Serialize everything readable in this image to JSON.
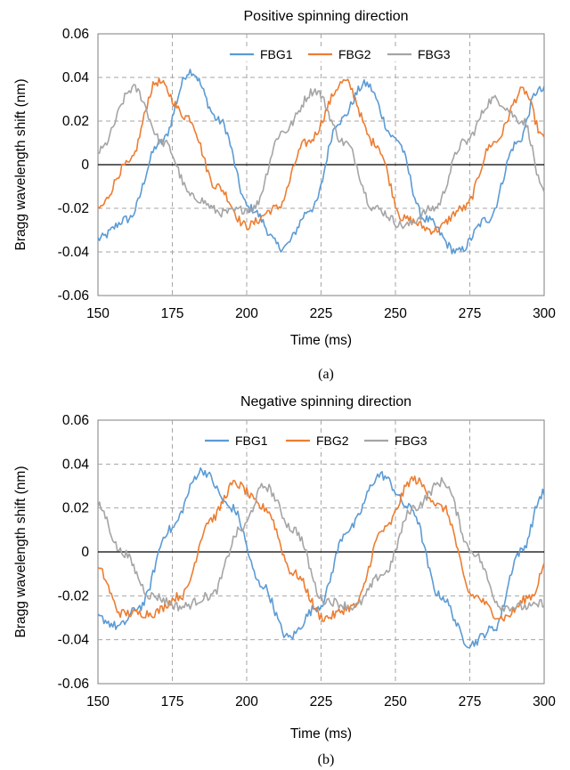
{
  "chart_data": [
    {
      "type": "line",
      "title": "Positive spinning direction",
      "xlabel": "Time (ms)",
      "ylabel": "Bragg wavelength shift (nm)",
      "caption": "(a)",
      "xlim": [
        150,
        300
      ],
      "ylim": [
        -0.06,
        0.06
      ],
      "xticks": [
        "150",
        "175",
        "200",
        "225",
        "250",
        "275",
        "300"
      ],
      "yticks": [
        "0.06",
        "0.04",
        "0.02",
        "0",
        "-0.02",
        "-0.04",
        "-0.06"
      ],
      "grid": "dashed at x = 175, 200, 225, 250, 275 and y = ±0.02, ±0.04; solid line at y = 0",
      "legend_position": "top",
      "series": [
        {
          "name": "FBG1",
          "color": "#5B9BD5",
          "x": [
            150,
            160,
            171,
            181,
            191,
            201,
            212,
            222,
            231,
            240,
            250,
            260,
            271,
            281,
            291,
            298,
            300
          ],
          "y": [
            -0.034,
            -0.025,
            0.01,
            0.043,
            0.02,
            -0.02,
            -0.038,
            -0.02,
            0.02,
            0.037,
            0.012,
            -0.025,
            -0.04,
            -0.025,
            0.01,
            0.034,
            0.034
          ]
        },
        {
          "name": "FBG2",
          "color": "#ED7D31",
          "x": [
            150,
            160,
            170,
            180,
            190,
            200,
            210,
            220,
            233,
            243,
            253,
            263,
            273,
            283,
            293,
            300
          ],
          "y": [
            -0.02,
            0.0,
            0.038,
            0.022,
            -0.01,
            -0.028,
            -0.02,
            0.01,
            0.038,
            0.01,
            -0.025,
            -0.03,
            -0.02,
            0.01,
            0.034,
            0.012
          ]
        },
        {
          "name": "FBG3",
          "color": "#A5A5A5",
          "x": [
            150,
            162,
            172,
            182,
            192,
            202,
            212,
            223,
            233,
            243,
            253,
            263,
            273,
            283,
            293,
            300
          ],
          "y": [
            0.006,
            0.035,
            0.01,
            -0.015,
            -0.022,
            -0.02,
            0.015,
            0.034,
            0.01,
            -0.02,
            -0.028,
            -0.02,
            0.01,
            0.03,
            0.02,
            -0.013
          ]
        }
      ]
    },
    {
      "type": "line",
      "title": "Negative spinning direction",
      "xlabel": "Time (ms)",
      "ylabel": "Bragg wavelength shift (nm)",
      "caption": "(b)",
      "xlim": [
        150,
        300
      ],
      "ylim": [
        -0.06,
        0.06
      ],
      "xticks": [
        "150",
        "175",
        "200",
        "225",
        "250",
        "275",
        "300"
      ],
      "yticks": [
        "0.06",
        "0.04",
        "0.02",
        "0",
        "-0.02",
        "-0.04",
        "-0.06"
      ],
      "grid": "dashed at x = 175, 200, 225, 250, 275 and y = ±0.02, ±0.04; solid line at y = 0",
      "legend_position": "top",
      "series": [
        {
          "name": "FBG1",
          "color": "#5B9BD5",
          "x": [
            150,
            157,
            164,
            174,
            185,
            195,
            205,
            214,
            224,
            234,
            245,
            255,
            265,
            275,
            283,
            292,
            300
          ],
          "y": [
            -0.03,
            -0.034,
            -0.025,
            0.01,
            0.037,
            0.02,
            -0.015,
            -0.039,
            -0.025,
            0.01,
            0.035,
            0.02,
            -0.02,
            -0.042,
            -0.035,
            0.0,
            0.027
          ]
        },
        {
          "name": "FBG2",
          "color": "#ED7D31",
          "x": [
            150,
            158,
            168,
            178,
            188,
            196,
            206,
            216,
            226,
            236,
            246,
            256,
            266,
            276,
            286,
            296,
            300
          ],
          "y": [
            -0.008,
            -0.028,
            -0.028,
            -0.02,
            0.015,
            0.031,
            0.02,
            -0.01,
            -0.03,
            -0.025,
            0.01,
            0.033,
            0.02,
            -0.02,
            -0.03,
            -0.02,
            -0.007
          ]
        },
        {
          "name": "FBG3",
          "color": "#A5A5A5",
          "x": [
            150,
            158,
            168,
            178,
            188,
            198,
            206,
            216,
            226,
            236,
            246,
            256,
            266,
            276,
            286,
            296,
            300
          ],
          "y": [
            0.021,
            0.0,
            -0.02,
            -0.025,
            -0.02,
            0.01,
            0.03,
            0.01,
            -0.022,
            -0.025,
            -0.01,
            0.02,
            0.032,
            0.0,
            -0.025,
            -0.025,
            -0.023
          ]
        }
      ]
    }
  ]
}
